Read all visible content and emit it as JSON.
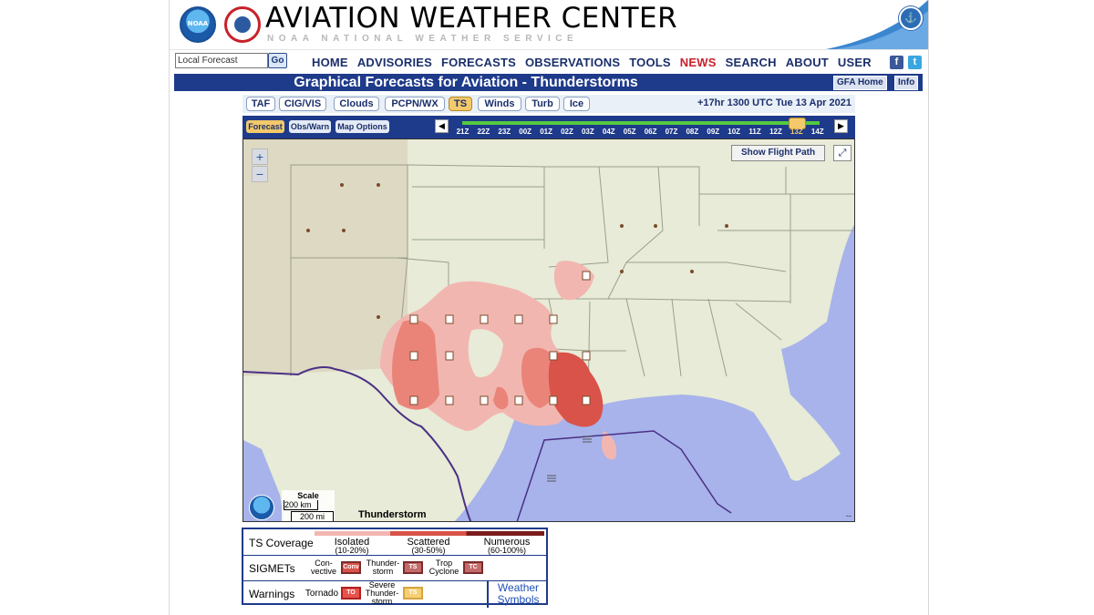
{
  "header": {
    "noaa_logo_text": "NOAA",
    "title": "AVIATION WEATHER CENTER",
    "subtitle": "NOAA   NATIONAL WEATHER SERVICE"
  },
  "nav": {
    "search_value": "Local Forecast",
    "go_label": "Go",
    "links": [
      "HOME",
      "ADVISORIES",
      "FORECASTS",
      "OBSERVATIONS",
      "TOOLS",
      "NEWS",
      "SEARCH",
      "ABOUT",
      "USER"
    ],
    "highlight": "NEWS"
  },
  "titlebar": {
    "title": "Graphical Forecasts for Aviation - Thunderstorms",
    "gfa_home": "GFA Home",
    "info": "Info"
  },
  "tabs": {
    "items": [
      "TAF",
      "CIG/VIS",
      "Clouds",
      "PCPN/WX",
      "TS",
      "Winds",
      "Turb",
      "Ice"
    ],
    "active": "TS",
    "timestamp": "+17hr 1300 UTC Tue 13 Apr 2021"
  },
  "map_toolbar": {
    "forecast": "Forecast",
    "obs_warn": "Obs/Warn",
    "map_options": "Map Options",
    "times": [
      "21Z",
      "22Z",
      "23Z",
      "00Z",
      "01Z",
      "02Z",
      "03Z",
      "04Z",
      "05Z",
      "06Z",
      "07Z",
      "08Z",
      "09Z",
      "10Z",
      "11Z",
      "12Z",
      "13Z",
      "14Z"
    ],
    "current_time": "13Z"
  },
  "map": {
    "show_flight_path": "Show Flight Path",
    "scale_title": "Scale",
    "scale_km": "200 km",
    "scale_mi": "200 mi",
    "product": "Thunderstorm",
    "corner": "--",
    "colors": {
      "land": "#e7ebd7",
      "water": "#a7b3ea",
      "ts_isolated": "#f2b6b0",
      "ts_scattered": "#ea8478",
      "ts_numerous": "#d9534a",
      "border": "#4b2f86"
    }
  },
  "legend": {
    "coverage_label": "TS Coverage",
    "isolated": "Isolated",
    "isolated_pct": "(10-20%)",
    "scattered": "Scattered",
    "scattered_pct": "(30-50%)",
    "numerous": "Numerous",
    "numerous_pct": "(60-100%)",
    "sigmets_label": "SIGMETs",
    "conv_1": "Con-",
    "conv_2": "vective",
    "conv_box": "Conv",
    "thunder_1": "Thunder-",
    "thunder_2": "storm",
    "ts_box": "TS",
    "trop_1": "Trop",
    "trop_2": "Cyclone",
    "tc_box": "TC",
    "warnings_label": "Warnings",
    "tornado": "Tornado",
    "tornado_box": "TO",
    "severe_1": "Severe",
    "severe_2": "Thunder-",
    "severe_3": "storm",
    "severe_box": "TS",
    "weather_1": "Weather",
    "weather_2": "Symbols"
  }
}
